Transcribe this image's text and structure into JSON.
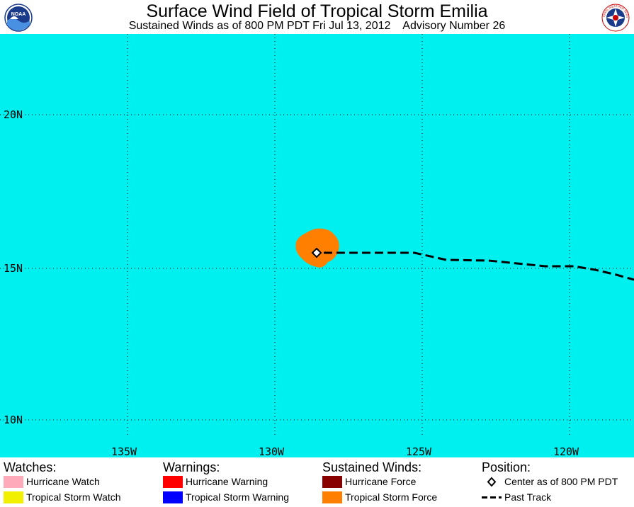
{
  "header": {
    "title": "Surface Wind Field of Tropical Storm Emilia",
    "subtitle": "Sustained Winds as of 800 PM PDT Fri Jul 13, 2012    Advisory Number 26",
    "left_logo_text": "NOAA",
    "right_logo_text": "NATIONAL WEATHER SERVICE"
  },
  "map": {
    "ocean_color": "#00f0f0",
    "latitude_labels": [
      "20N",
      "15N",
      "10N"
    ],
    "longitude_labels": [
      "135W",
      "130W",
      "125W",
      "120W"
    ],
    "storm": {
      "wind_field": "Tropical Storm Force",
      "wind_field_color": "#ff8000",
      "center": "Center as of 800 PM PDT",
      "track": "Past Track"
    }
  },
  "legend": {
    "watches": {
      "heading": "Watches:",
      "items": [
        {
          "label": "Hurricane Watch",
          "color": "#ffaabb"
        },
        {
          "label": "Tropical Storm Watch",
          "color": "#f0f000"
        }
      ]
    },
    "warnings": {
      "heading": "Warnings:",
      "items": [
        {
          "label": "Hurricane Warning",
          "color": "#ff0000"
        },
        {
          "label": "Tropical Storm Warning",
          "color": "#0000ff"
        }
      ]
    },
    "winds": {
      "heading": "Sustained Winds:",
      "items": [
        {
          "label": "Hurricane Force",
          "color": "#880000"
        },
        {
          "label": "Tropical Storm Force",
          "color": "#ff8000"
        }
      ]
    },
    "position": {
      "heading": "Position:",
      "items": [
        {
          "label": "Center as of 800 PM PDT",
          "icon": "diamond-icon"
        },
        {
          "label": "Past Track",
          "icon": "dashed-line-icon"
        }
      ]
    }
  }
}
